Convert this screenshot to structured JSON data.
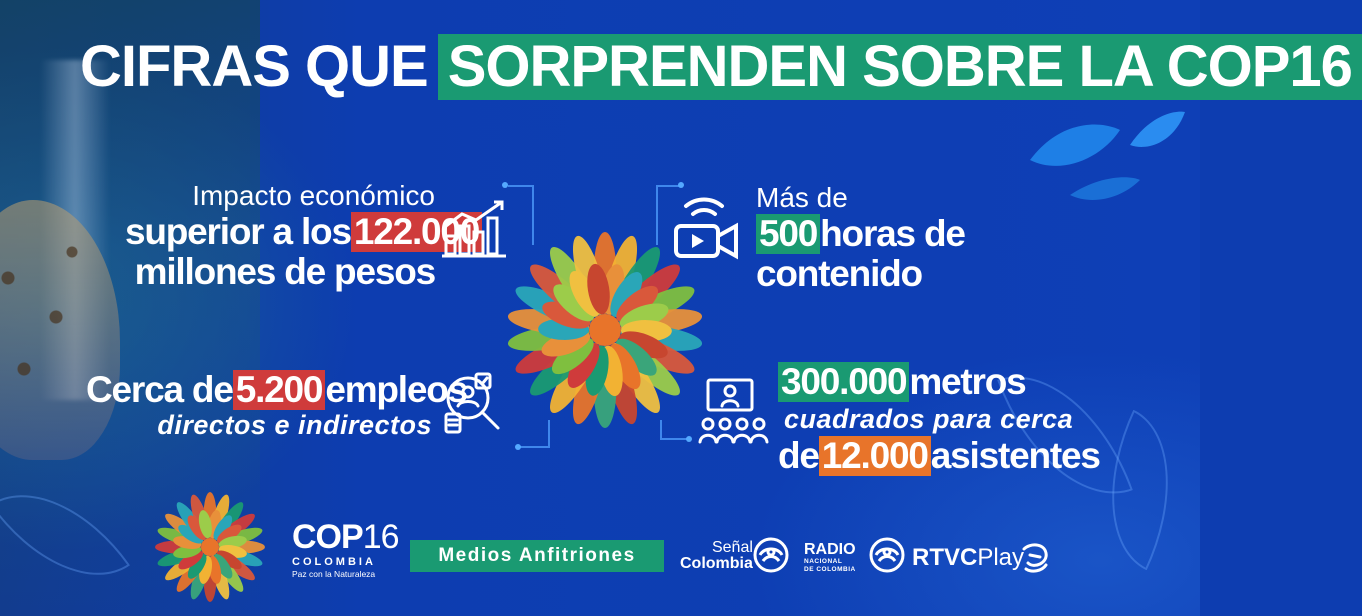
{
  "title": {
    "part1": "CIFRAS QUE",
    "part2": "SORPRENDEN SOBRE LA COP16"
  },
  "stats": {
    "economic": {
      "line1": "Impacto económico",
      "line2_pre": "superior a los",
      "line2_highlight": "122.000",
      "line3": "millones de pesos",
      "icon": "bar-chart-growth-icon"
    },
    "content": {
      "line1": "Más de",
      "line2_highlight": "500",
      "line2_post": "horas de",
      "line3": "contenido",
      "icon": "video-camera-signal-icon"
    },
    "jobs": {
      "line1_pre": "Cerca de",
      "line1_highlight": "5.200",
      "line1_post": "empleos",
      "line2": "directos e indirectos",
      "icon": "job-search-icon"
    },
    "space": {
      "line1_highlight": "300.000",
      "line1_post": "metros",
      "line2": "cuadrados para cerca",
      "line3_pre": "de",
      "line3_highlight": "12.000",
      "line3_post": "asistentes",
      "icon": "audience-presentation-icon"
    }
  },
  "footer": {
    "cop_main_bold": "COP",
    "cop_main_thin": "16",
    "cop_country": "COLOMBIA",
    "cop_tagline": "Paz con la Naturaleza",
    "medios": "Medios Anfitriones",
    "senal_l1": "Señal",
    "senal_l2": "Colombia",
    "radio_l1": "RADIO",
    "radio_l2a": "NACIONAL",
    "radio_l2b": "DE COLOMBIA",
    "rtvc_bold": "RTVC",
    "rtvc_thin": "Play"
  },
  "colors": {
    "background": "#0d3db0",
    "green_highlight": "#1a9a72",
    "red_highlight": "#cf3b3b",
    "orange_highlight": "#e8742a",
    "connector": "#54a9ff"
  }
}
